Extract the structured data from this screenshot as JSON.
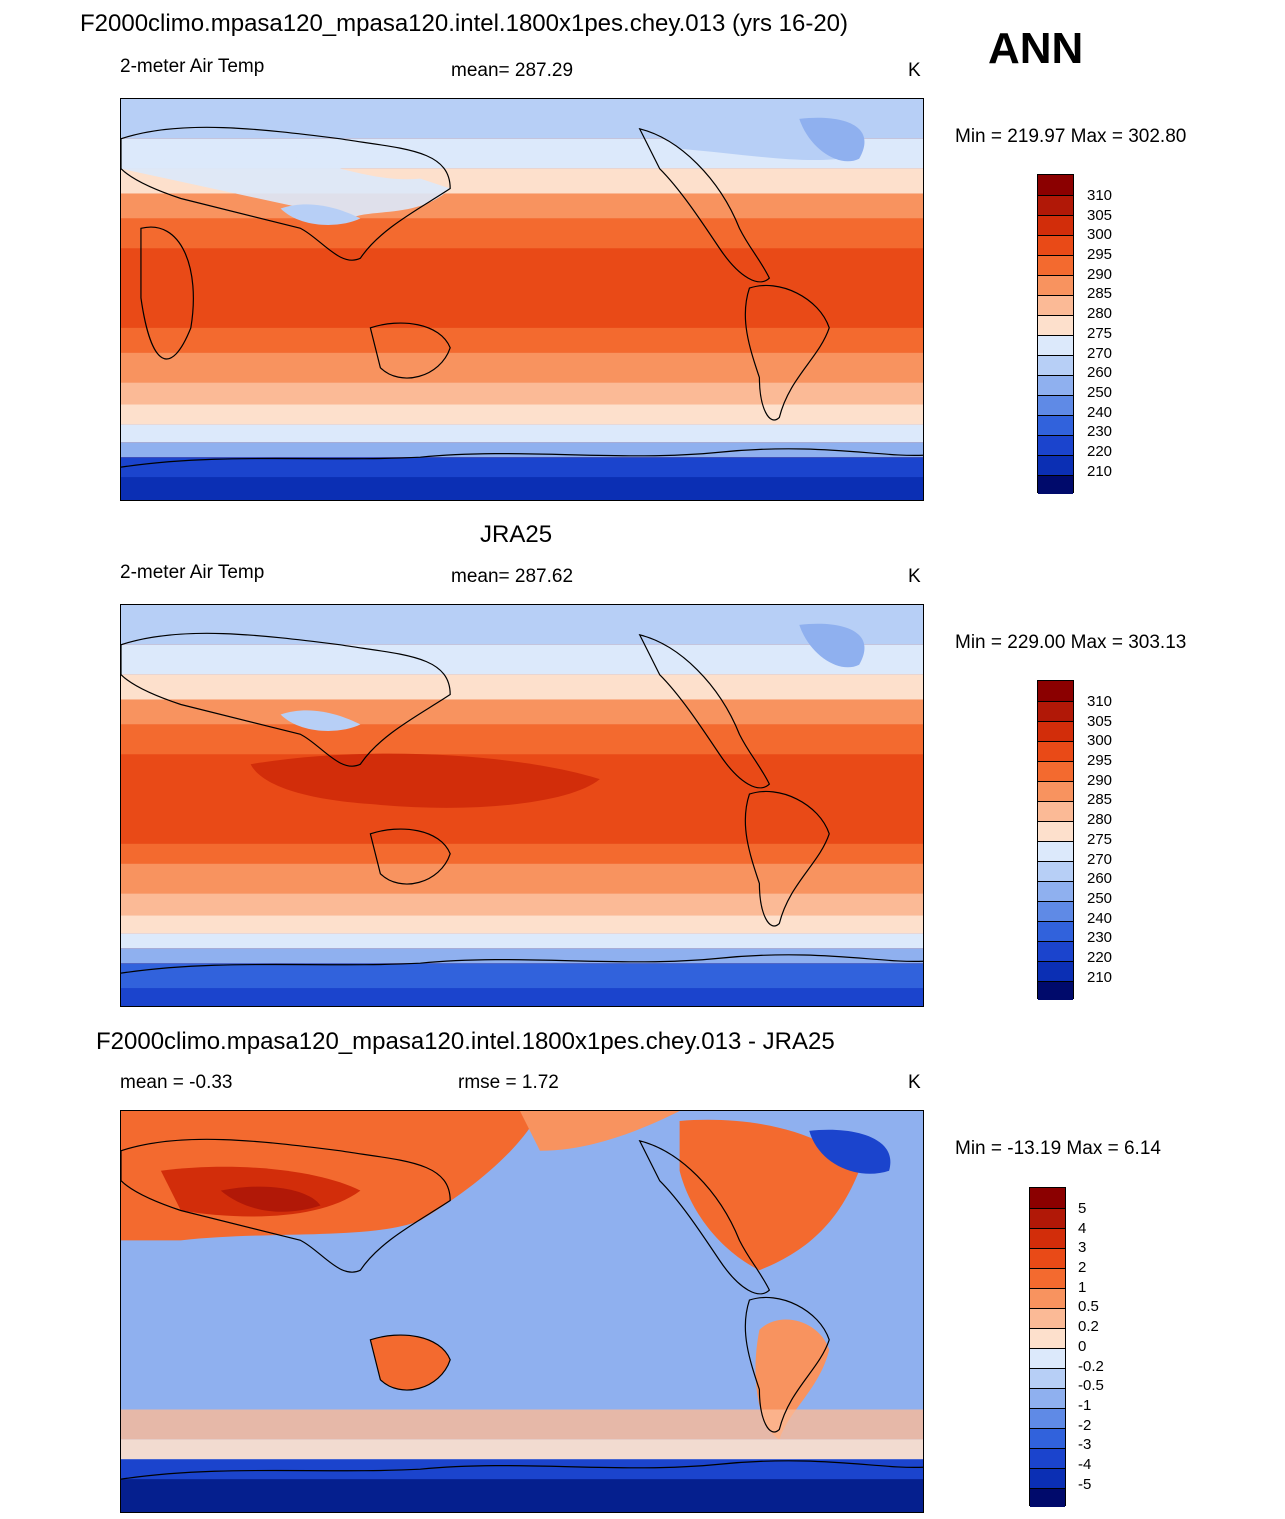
{
  "season": "ANN",
  "units": "K",
  "panels": [
    {
      "title": "F2000climo.mpasa120_mpasa120.intel.1800x1pes.chey.013 (yrs 16-20)",
      "left_label": "2-meter Air Temp",
      "center_label": "mean= 287.29",
      "units": "K",
      "minmax": "Min = 219.97 Max = 302.80",
      "map_name": "model-temperature-map",
      "levels": [
        "310",
        "305",
        "300",
        "295",
        "290",
        "285",
        "280",
        "275",
        "270",
        "260",
        "250",
        "240",
        "230",
        "220",
        "210"
      ]
    },
    {
      "title": "JRA25",
      "left_label": "2-meter Air Temp",
      "center_label": "mean= 287.62",
      "units": "K",
      "minmax": "Min = 229.00 Max = 303.13",
      "map_name": "reference-temperature-map",
      "levels": [
        "310",
        "305",
        "300",
        "295",
        "290",
        "285",
        "280",
        "275",
        "270",
        "260",
        "250",
        "240",
        "230",
        "220",
        "210"
      ]
    },
    {
      "title": "F2000climo.mpasa120_mpasa120.intel.1800x1pes.chey.013 - JRA25",
      "left_label": "mean =  -0.33",
      "center_label": "rmse =   1.72",
      "units": "K",
      "minmax": "Min = -13.19 Max =   6.14",
      "map_name": "difference-map",
      "levels": [
        "5",
        "4",
        "3",
        "2",
        "1",
        "0.5",
        "0.2",
        "0",
        "-0.2",
        "-0.5",
        "-1",
        "-2",
        "-3",
        "-4",
        "-5"
      ]
    }
  ],
  "colors": {
    "palette": [
      "#8b0000",
      "#b11807",
      "#d22d0a",
      "#e94a17",
      "#f36a2f",
      "#f8935f",
      "#fbba96",
      "#fde0cc",
      "#fdf1e8",
      "#dce9fb",
      "#b7cff6",
      "#8fb0ef",
      "#5f8ae6",
      "#3162dc",
      "#1b44cd",
      "#0b2fb4",
      "#051f8e",
      "#000a6b"
    ],
    "coast": "#000000"
  }
}
